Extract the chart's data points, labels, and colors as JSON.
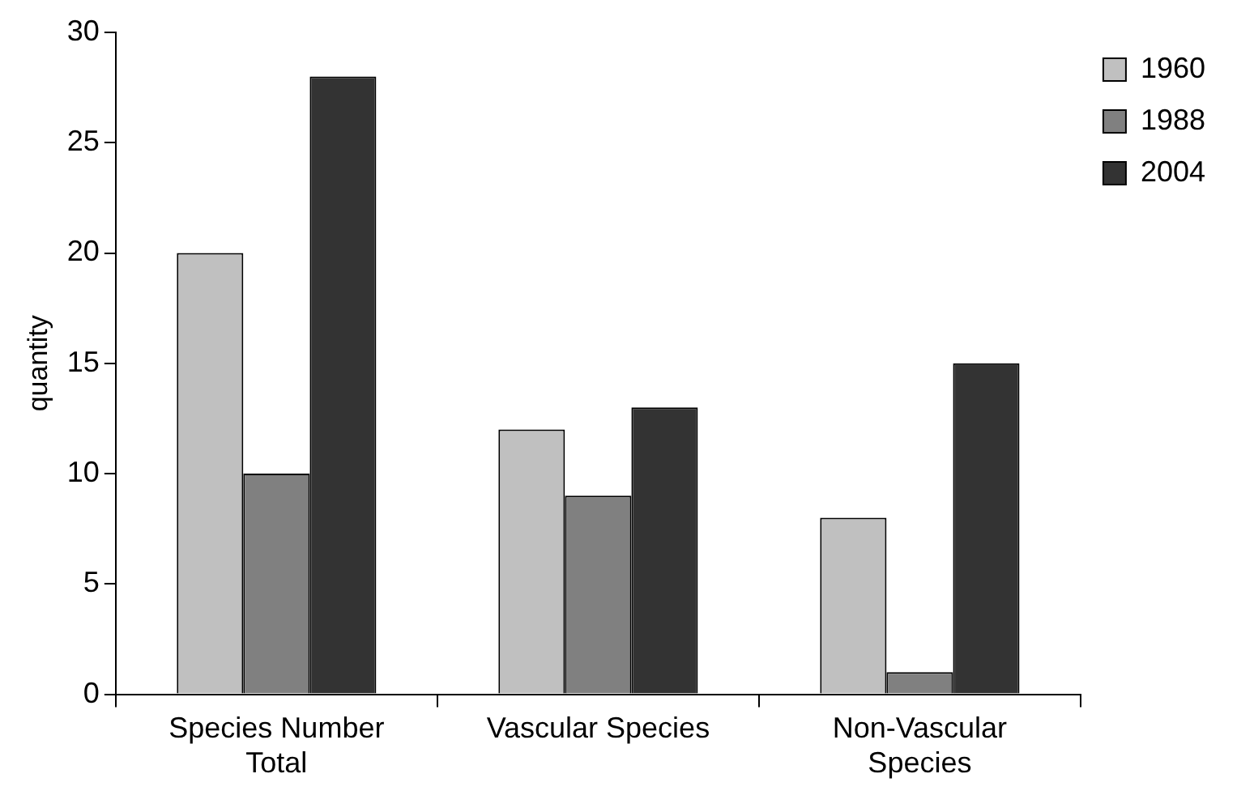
{
  "chart_data": {
    "type": "bar",
    "ylabel": "quantity",
    "categories": [
      "Species Number Total",
      "Vascular Species",
      "Non-Vascular Species"
    ],
    "series": [
      {
        "name": "1960",
        "color": "#c0c0c0",
        "values": [
          20,
          12,
          8
        ]
      },
      {
        "name": "1988",
        "color": "#808080",
        "values": [
          10,
          9,
          1
        ]
      },
      {
        "name": "2004",
        "color": "#333333",
        "values": [
          28,
          13,
          15
        ]
      }
    ],
    "ylim": [
      0,
      30
    ],
    "yticks": [
      0,
      5,
      10,
      15,
      20,
      25,
      30
    ],
    "grid": false,
    "legend": "top right"
  }
}
